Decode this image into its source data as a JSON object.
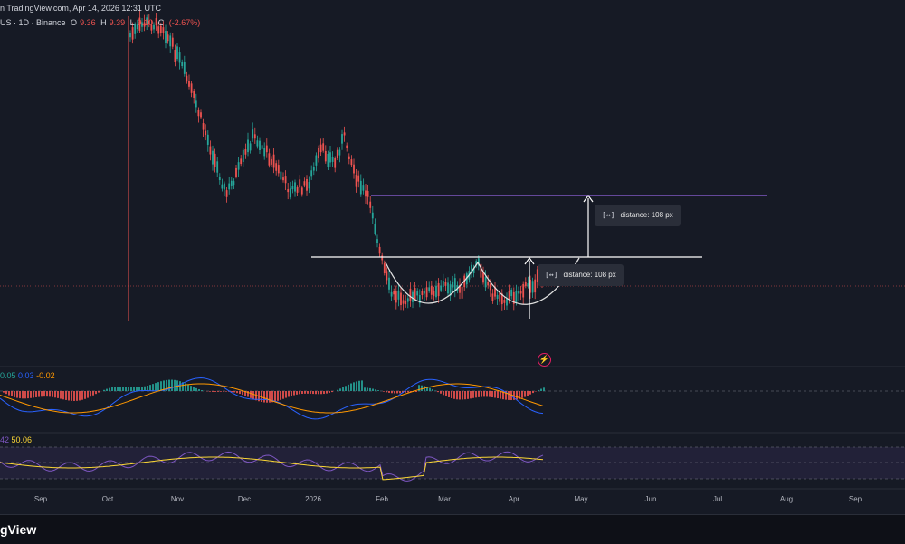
{
  "header": {
    "publish_text": "n TradingView.com, Apr 14, 2026 12:31 UTC"
  },
  "symbol": {
    "name": "US · 1D · Binance",
    "open_label": "O",
    "open_value": "9.36",
    "high_label": "H",
    "high_value": "9.39",
    "low_label": "L",
    "low_value": "9.10",
    "close_label": "C",
    "change_value": "(-2.67%)"
  },
  "macd": {
    "v1": "0.05",
    "v2": "0.03",
    "v3": "-0.02"
  },
  "rsi": {
    "v1": "42",
    "v2": "50.06"
  },
  "annotations": {
    "distance_1": "distance: 108 px",
    "distance_2": "distance: 108 px",
    "icon_text": "[↔]"
  },
  "time_axis": [
    "Sep",
    "Oct",
    "Nov",
    "Dec",
    "2026",
    "Feb",
    "Mar",
    "Apr",
    "May",
    "Jun",
    "Jul",
    "Aug",
    "Sep"
  ],
  "brand": "gView",
  "colors": {
    "background": "#161a25",
    "bull": "#26a69a",
    "bear": "#ef5350",
    "resistance": "#7e57c2",
    "neckline": "#ffffff",
    "macd_line": "#2962ff",
    "signal_line": "#ff9800",
    "rsi_line": "#7e57c2",
    "rsi_ma": "#fdd835"
  },
  "icons": {
    "measure": "measure-distance-icon",
    "alert": "lightning-icon"
  }
}
